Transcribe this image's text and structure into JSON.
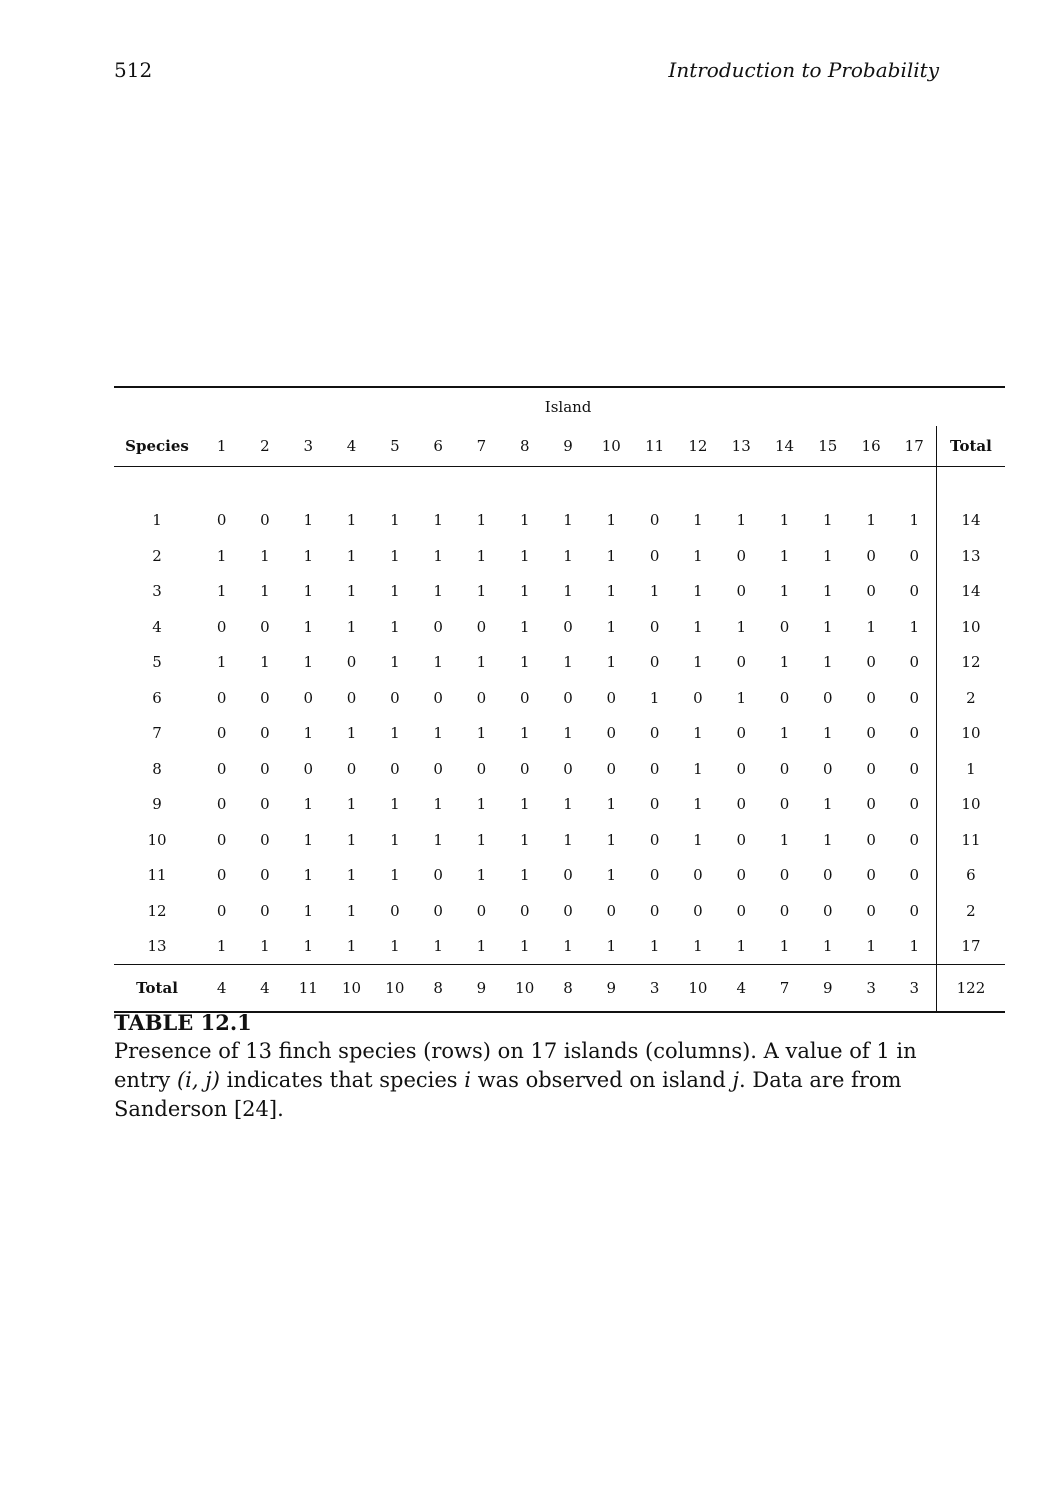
{
  "header": {
    "page_number": "512",
    "running_title": "Introduction to Probability"
  },
  "table": {
    "group_label": "Island",
    "row_header": "Species",
    "total_header": "Total",
    "columns": [
      "1",
      "2",
      "3",
      "4",
      "5",
      "6",
      "7",
      "8",
      "9",
      "10",
      "11",
      "12",
      "13",
      "14",
      "15",
      "16",
      "17"
    ],
    "rows": [
      {
        "label": "1",
        "values": [
          0,
          0,
          1,
          1,
          1,
          1,
          1,
          1,
          1,
          1,
          0,
          1,
          1,
          1,
          1,
          1,
          1
        ],
        "total": 14
      },
      {
        "label": "2",
        "values": [
          1,
          1,
          1,
          1,
          1,
          1,
          1,
          1,
          1,
          1,
          0,
          1,
          0,
          1,
          1,
          0,
          0
        ],
        "total": 13
      },
      {
        "label": "3",
        "values": [
          1,
          1,
          1,
          1,
          1,
          1,
          1,
          1,
          1,
          1,
          1,
          1,
          0,
          1,
          1,
          0,
          0
        ],
        "total": 14
      },
      {
        "label": "4",
        "values": [
          0,
          0,
          1,
          1,
          1,
          0,
          0,
          1,
          0,
          1,
          0,
          1,
          1,
          0,
          1,
          1,
          1
        ],
        "total": 10
      },
      {
        "label": "5",
        "values": [
          1,
          1,
          1,
          0,
          1,
          1,
          1,
          1,
          1,
          1,
          0,
          1,
          0,
          1,
          1,
          0,
          0
        ],
        "total": 12
      },
      {
        "label": "6",
        "values": [
          0,
          0,
          0,
          0,
          0,
          0,
          0,
          0,
          0,
          0,
          1,
          0,
          1,
          0,
          0,
          0,
          0
        ],
        "total": 2
      },
      {
        "label": "7",
        "values": [
          0,
          0,
          1,
          1,
          1,
          1,
          1,
          1,
          1,
          0,
          0,
          1,
          0,
          1,
          1,
          0,
          0
        ],
        "total": 10
      },
      {
        "label": "8",
        "values": [
          0,
          0,
          0,
          0,
          0,
          0,
          0,
          0,
          0,
          0,
          0,
          1,
          0,
          0,
          0,
          0,
          0
        ],
        "total": 1
      },
      {
        "label": "9",
        "values": [
          0,
          0,
          1,
          1,
          1,
          1,
          1,
          1,
          1,
          1,
          0,
          1,
          0,
          0,
          1,
          0,
          0
        ],
        "total": 10
      },
      {
        "label": "10",
        "values": [
          0,
          0,
          1,
          1,
          1,
          1,
          1,
          1,
          1,
          1,
          0,
          1,
          0,
          1,
          1,
          0,
          0
        ],
        "total": 11
      },
      {
        "label": "11",
        "values": [
          0,
          0,
          1,
          1,
          1,
          0,
          1,
          1,
          0,
          1,
          0,
          0,
          0,
          0,
          0,
          0,
          0
        ],
        "total": 6
      },
      {
        "label": "12",
        "values": [
          0,
          0,
          1,
          1,
          0,
          0,
          0,
          0,
          0,
          0,
          0,
          0,
          0,
          0,
          0,
          0,
          0
        ],
        "total": 2
      },
      {
        "label": "13",
        "values": [
          1,
          1,
          1,
          1,
          1,
          1,
          1,
          1,
          1,
          1,
          1,
          1,
          1,
          1,
          1,
          1,
          1
        ],
        "total": 17
      }
    ],
    "total_row": {
      "label": "Total",
      "values": [
        4,
        4,
        11,
        10,
        10,
        8,
        9,
        10,
        8,
        9,
        3,
        10,
        4,
        7,
        9,
        3,
        3
      ],
      "grand_total": 122
    }
  },
  "caption": {
    "title": "TABLE 12.1",
    "text_part1": "Presence of 13 finch species (rows) on 17 islands (columns). A value of 1 in entry ",
    "math_ij": "(i, j)",
    "text_part2": " indicates that species ",
    "math_i": "i",
    "text_part3": " was observed on island ",
    "math_j": "j",
    "text_part4": ". Data are from Sanderson [24]."
  }
}
